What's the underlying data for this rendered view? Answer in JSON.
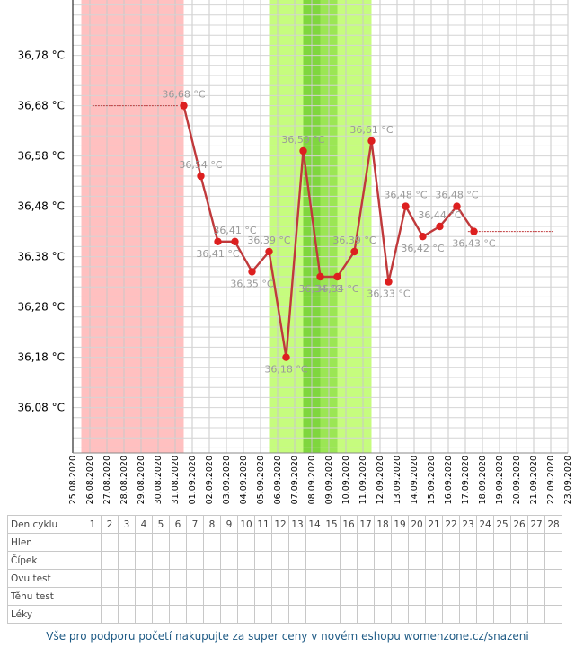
{
  "chart_data": {
    "type": "line",
    "y_unit": " °C",
    "ylim": [
      35.99,
      36.89
    ],
    "yticks": [
      "36,78 °C",
      "36,68 °C",
      "36,58 °C",
      "36,48 °C",
      "36,38 °C",
      "36,28 °C",
      "36,18 °C",
      "36,08 °C"
    ],
    "dates": [
      "25.08.2020",
      "26.08.2020",
      "27.08.2020",
      "28.08.2020",
      "29.08.2020",
      "30.08.2020",
      "31.08.2020",
      "01.09.2020",
      "02.09.2020",
      "03.09.2020",
      "04.09.2020",
      "05.09.2020",
      "06.09.2020",
      "07.09.2020",
      "08.09.2020",
      "09.09.2020",
      "10.09.2020",
      "11.09.2020",
      "12.09.2020",
      "13.09.2020",
      "14.09.2020",
      "15.09.2020",
      "16.09.2020",
      "17.09.2020",
      "18.09.2020",
      "19.09.2020",
      "20.09.2020",
      "21.09.2020",
      "22.09.2020",
      "23.09.2020"
    ],
    "series": [
      {
        "color": "#c0393b",
        "points": [
          {
            "x": "31.08.2020",
            "y": 36.68,
            "label": "36,68 °C"
          },
          {
            "x": "01.09.2020",
            "y": 36.54,
            "label": "36,54 °C"
          },
          {
            "x": "02.09.2020",
            "y": 36.41,
            "label": "36,41 °C"
          },
          {
            "x": "03.09.2020",
            "y": 36.41,
            "label": "36,41 °C"
          },
          {
            "x": "04.09.2020",
            "y": 36.35,
            "label": "36,35 °C"
          },
          {
            "x": "05.09.2020",
            "y": 36.39,
            "label": "36,39 °C"
          },
          {
            "x": "06.09.2020",
            "y": 36.18,
            "label": "36,18 °C"
          },
          {
            "x": "07.09.2020",
            "y": 36.59,
            "label": "36,59 °C"
          },
          {
            "x": "08.09.2020",
            "y": 36.34,
            "label": "36,34 °C"
          },
          {
            "x": "09.09.2020",
            "y": 36.34,
            "label": "36,34 °C"
          },
          {
            "x": "10.09.2020",
            "y": 36.39,
            "label": "36,39 °C"
          },
          {
            "x": "11.09.2020",
            "y": 36.61,
            "label": "36,61 °C"
          },
          {
            "x": "12.09.2020",
            "y": 36.33,
            "label": "36,33 °C"
          },
          {
            "x": "13.09.2020",
            "y": 36.48,
            "label": "36,48 °C"
          },
          {
            "x": "14.09.2020",
            "y": 36.42,
            "label": "36,42 °C"
          },
          {
            "x": "15.09.2020",
            "y": 36.44,
            "label": "36,44 °C"
          },
          {
            "x": "16.09.2020",
            "y": 36.48,
            "label": "36,48 °C"
          },
          {
            "x": "17.09.2020",
            "y": 36.43,
            "label": "36,43 °C"
          }
        ]
      }
    ],
    "reference_lines": [
      {
        "from": "26.08.2020",
        "to": "31.08.2020",
        "y": 36.68,
        "color": "#c0393b"
      },
      {
        "from": "17.09.2020",
        "to": "22.09.2020",
        "y": 36.43,
        "color": "#c0393b"
      }
    ],
    "bands": [
      {
        "from": "25.08.2020",
        "to": "30.08.2020",
        "color": "#ffc0c0"
      },
      {
        "from": "05.09.2020",
        "to": "10.09.2020",
        "color": "#c6fc7e"
      },
      {
        "from": "07.09.2020",
        "to": "08.09.2020",
        "color": "#9be654"
      },
      {
        "from": "07.09.2020",
        "to": "07.09.2020",
        "color": "#7fd63e"
      }
    ],
    "grid": true
  },
  "table": {
    "rows": [
      "Den cyklu",
      "Hlen",
      "Čípek",
      "Ovu test",
      "Těhu test",
      "Léky"
    ],
    "days": [
      "1",
      "2",
      "3",
      "4",
      "5",
      "6",
      "7",
      "8",
      "9",
      "10",
      "11",
      "12",
      "13",
      "14",
      "15",
      "16",
      "17",
      "18",
      "19",
      "20",
      "21",
      "22",
      "23",
      "24",
      "25",
      "26",
      "27",
      "28"
    ]
  },
  "footer": "Vše pro podporu početí nakupujte za super ceny v novém eshopu womenzone.cz/snazeni"
}
